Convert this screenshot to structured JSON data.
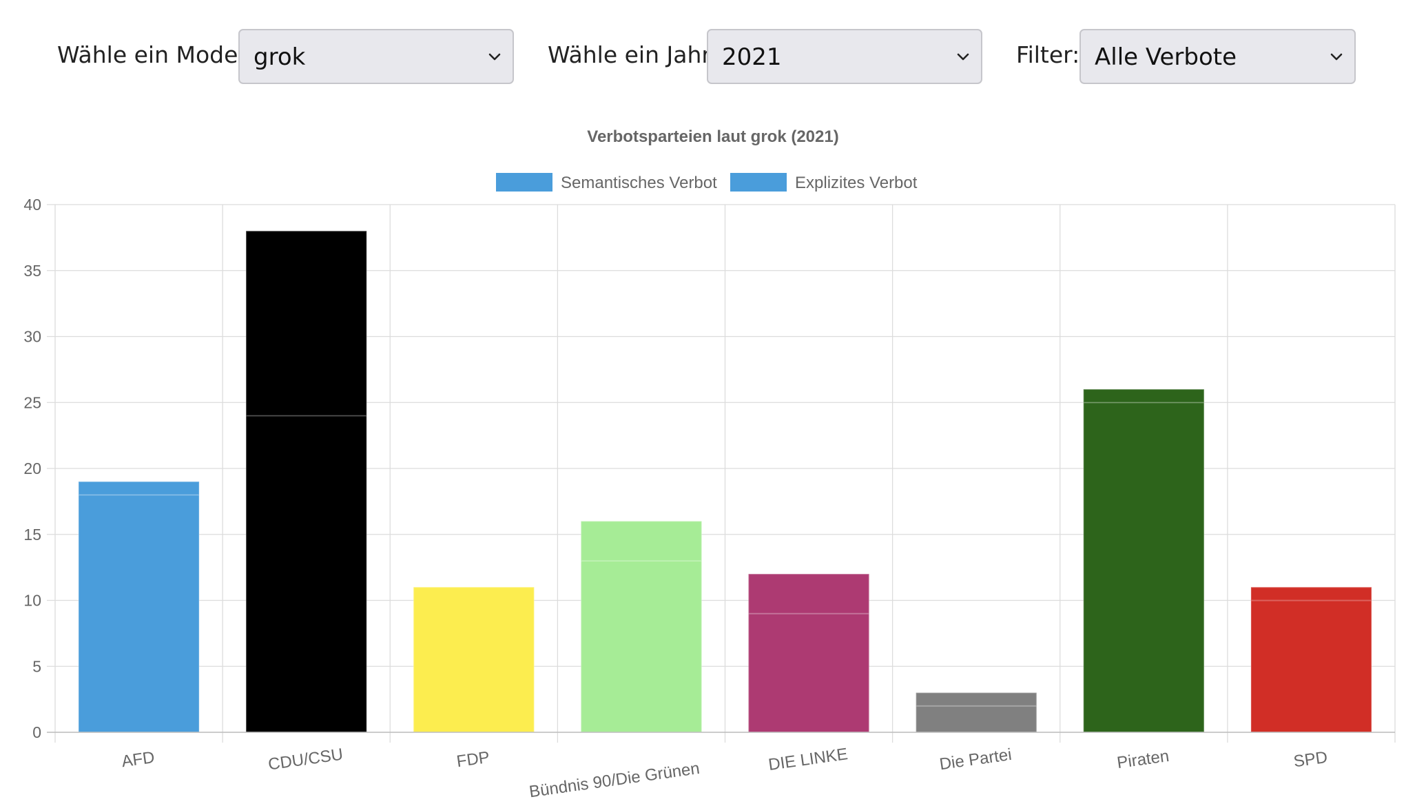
{
  "controls": {
    "model_label": "Wähle ein Modell:",
    "model_value": "grok",
    "year_label": "Wähle ein Jahr:",
    "year_value": "2021",
    "filter_label": "Filter:",
    "filter_value": "Alle Verbote"
  },
  "chart_data": {
    "type": "bar",
    "stacked": true,
    "title": "Verbotsparteien laut grok (2021)",
    "xlabel": "",
    "ylabel": "",
    "ylim": [
      0,
      40
    ],
    "yticks": [
      0,
      5,
      10,
      15,
      20,
      25,
      30,
      35,
      40
    ],
    "grid": true,
    "legend_position": "top",
    "categories": [
      "AFD",
      "CDU/CSU",
      "FDP",
      "Bündnis 90/Die Grünen",
      "DIE LINKE",
      "Die Partei",
      "Piraten",
      "SPD"
    ],
    "colors": [
      "#4a9ddb",
      "#000000",
      "#fced4f",
      "#a6ec96",
      "#ad3a72",
      "#808080",
      "#2d641b",
      "#d12e26"
    ],
    "legend_color": "#4a9ddb",
    "series": [
      {
        "name": "Semantisches Verbot",
        "values": [
          18,
          24,
          11,
          13,
          9,
          2,
          25,
          10
        ]
      },
      {
        "name": "Explizites Verbot",
        "values": [
          1,
          14,
          0,
          3,
          3,
          1,
          1,
          1
        ]
      }
    ]
  }
}
